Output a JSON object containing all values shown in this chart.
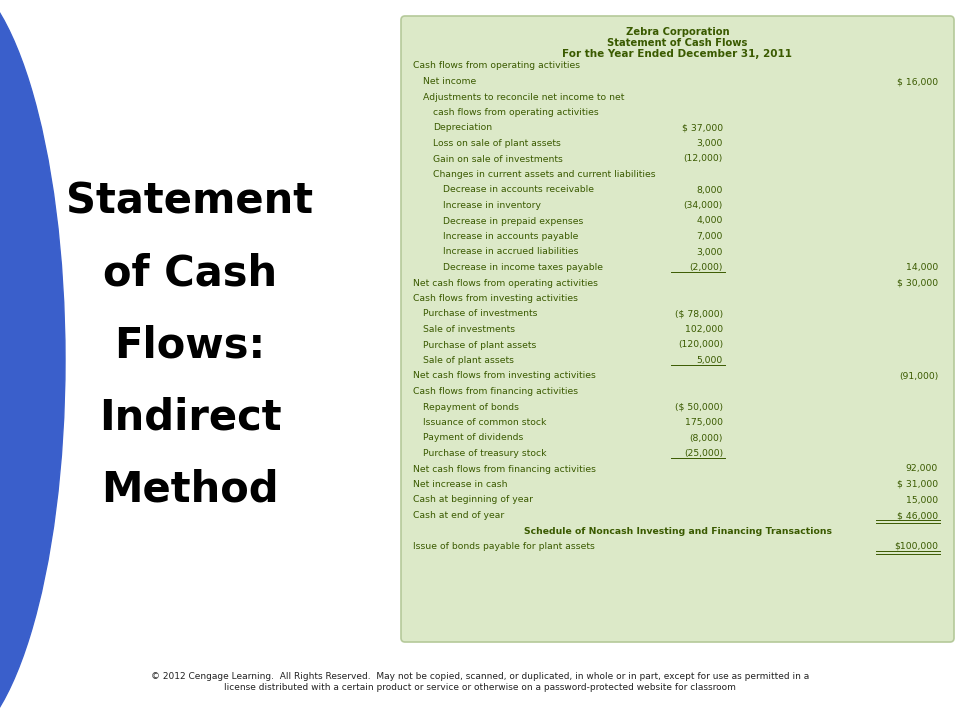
{
  "title_lines": [
    "Statement",
    "of Cash",
    "Flows:",
    "Indirect",
    "Method"
  ],
  "title_color": "#000000",
  "bg_color": "#ffffff",
  "blue_color": "#3a5fcb",
  "table_bg": "#dce9c8",
  "table_border": "#b5c99a",
  "header1": "Zebra Corporation",
  "header2": "Statement of Cash Flows",
  "header3": "For the Year Ended December 31, 2011",
  "header_color": "#3a5a00",
  "text_color": "#3a5a00",
  "footer_text": "© 2012 Cengage Learning.  All Rights Reserved.  May not be copied, scanned, or duplicated, in whole or in part, except for use as permitted in a\nlicense distributed with a certain product or service or otherwise on a password-protected website for classroom",
  "rows": [
    {
      "indent": 0,
      "text": "Cash flows from operating activities",
      "col1": "",
      "col2": "",
      "ul1": false,
      "ul2": false,
      "bold": false,
      "center": false
    },
    {
      "indent": 1,
      "text": "Net income",
      "col1": "",
      "col2": "$ 16,000",
      "ul1": false,
      "ul2": false,
      "bold": false,
      "center": false
    },
    {
      "indent": 1,
      "text": "Adjustments to reconcile net income to net",
      "col1": "",
      "col2": "",
      "ul1": false,
      "ul2": false,
      "bold": false,
      "center": false
    },
    {
      "indent": 2,
      "text": "cash flows from operating activities",
      "col1": "",
      "col2": "",
      "ul1": false,
      "ul2": false,
      "bold": false,
      "center": false
    },
    {
      "indent": 2,
      "text": "Depreciation",
      "col1": "$ 37,000",
      "col2": "",
      "ul1": false,
      "ul2": false,
      "bold": false,
      "center": false
    },
    {
      "indent": 2,
      "text": "Loss on sale of plant assets",
      "col1": "3,000",
      "col2": "",
      "ul1": false,
      "ul2": false,
      "bold": false,
      "center": false
    },
    {
      "indent": 2,
      "text": "Gain on sale of investments",
      "col1": "(12,000)",
      "col2": "",
      "ul1": false,
      "ul2": false,
      "bold": false,
      "center": false
    },
    {
      "indent": 2,
      "text": "Changes in current assets and current liabilities",
      "col1": "",
      "col2": "",
      "ul1": false,
      "ul2": false,
      "bold": false,
      "center": false
    },
    {
      "indent": 3,
      "text": "Decrease in accounts receivable",
      "col1": "8,000",
      "col2": "",
      "ul1": false,
      "ul2": false,
      "bold": false,
      "center": false
    },
    {
      "indent": 3,
      "text": "Increase in inventory",
      "col1": "(34,000)",
      "col2": "",
      "ul1": false,
      "ul2": false,
      "bold": false,
      "center": false
    },
    {
      "indent": 3,
      "text": "Decrease in prepaid expenses",
      "col1": "4,000",
      "col2": "",
      "ul1": false,
      "ul2": false,
      "bold": false,
      "center": false
    },
    {
      "indent": 3,
      "text": "Increase in accounts payable",
      "col1": "7,000",
      "col2": "",
      "ul1": false,
      "ul2": false,
      "bold": false,
      "center": false
    },
    {
      "indent": 3,
      "text": "Increase in accrued liabilities",
      "col1": "3,000",
      "col2": "",
      "ul1": false,
      "ul2": false,
      "bold": false,
      "center": false
    },
    {
      "indent": 3,
      "text": "Decrease in income taxes payable",
      "col1": "(2,000)",
      "col2": "14,000",
      "ul1": true,
      "ul2": false,
      "bold": false,
      "center": false
    },
    {
      "indent": 0,
      "text": "Net cash flows from operating activities",
      "col1": "",
      "col2": "$ 30,000",
      "ul1": false,
      "ul2": false,
      "bold": false,
      "center": false
    },
    {
      "indent": 0,
      "text": "Cash flows from investing activities",
      "col1": "",
      "col2": "",
      "ul1": false,
      "ul2": false,
      "bold": false,
      "center": false
    },
    {
      "indent": 1,
      "text": "Purchase of investments",
      "col1": "($ 78,000)",
      "col2": "",
      "ul1": false,
      "ul2": false,
      "bold": false,
      "center": false
    },
    {
      "indent": 1,
      "text": "Sale of investments",
      "col1": "102,000",
      "col2": "",
      "ul1": false,
      "ul2": false,
      "bold": false,
      "center": false
    },
    {
      "indent": 1,
      "text": "Purchase of plant assets",
      "col1": "(120,000)",
      "col2": "",
      "ul1": false,
      "ul2": false,
      "bold": false,
      "center": false
    },
    {
      "indent": 1,
      "text": "Sale of plant assets",
      "col1": "5,000",
      "col2": "",
      "ul1": true,
      "ul2": false,
      "bold": false,
      "center": false
    },
    {
      "indent": 0,
      "text": "Net cash flows from investing activities",
      "col1": "",
      "col2": "(91,000)",
      "ul1": false,
      "ul2": false,
      "bold": false,
      "center": false
    },
    {
      "indent": 0,
      "text": "Cash flows from financing activities",
      "col1": "",
      "col2": "",
      "ul1": false,
      "ul2": false,
      "bold": false,
      "center": false
    },
    {
      "indent": 1,
      "text": "Repayment of bonds",
      "col1": "($ 50,000)",
      "col2": "",
      "ul1": false,
      "ul2": false,
      "bold": false,
      "center": false
    },
    {
      "indent": 1,
      "text": "Issuance of common stock",
      "col1": "175,000",
      "col2": "",
      "ul1": false,
      "ul2": false,
      "bold": false,
      "center": false
    },
    {
      "indent": 1,
      "text": "Payment of dividends",
      "col1": "(8,000)",
      "col2": "",
      "ul1": false,
      "ul2": false,
      "bold": false,
      "center": false
    },
    {
      "indent": 1,
      "text": "Purchase of treasury stock",
      "col1": "(25,000)",
      "col2": "",
      "ul1": true,
      "ul2": false,
      "bold": false,
      "center": false
    },
    {
      "indent": 0,
      "text": "Net cash flows from financing activities",
      "col1": "",
      "col2": "92,000",
      "ul1": false,
      "ul2": false,
      "bold": false,
      "center": false
    },
    {
      "indent": 0,
      "text": "Net increase in cash",
      "col1": "",
      "col2": "$ 31,000",
      "ul1": false,
      "ul2": false,
      "bold": false,
      "center": false
    },
    {
      "indent": 0,
      "text": "Cash at beginning of year",
      "col1": "",
      "col2": "15,000",
      "ul1": false,
      "ul2": false,
      "bold": false,
      "center": false
    },
    {
      "indent": 0,
      "text": "Cash at end of year",
      "col1": "",
      "col2": "$ 46,000",
      "ul1": false,
      "ul2": true,
      "bold": false,
      "center": false
    },
    {
      "indent": 0,
      "text": "Schedule of Noncash Investing and Financing Transactions",
      "col1": "",
      "col2": "",
      "ul1": false,
      "ul2": false,
      "bold": true,
      "center": true
    },
    {
      "indent": 0,
      "text": "Issue of bonds payable for plant assets",
      "col1": "",
      "col2": "$100,000",
      "ul1": false,
      "ul2": true,
      "bold": false,
      "center": false
    }
  ]
}
